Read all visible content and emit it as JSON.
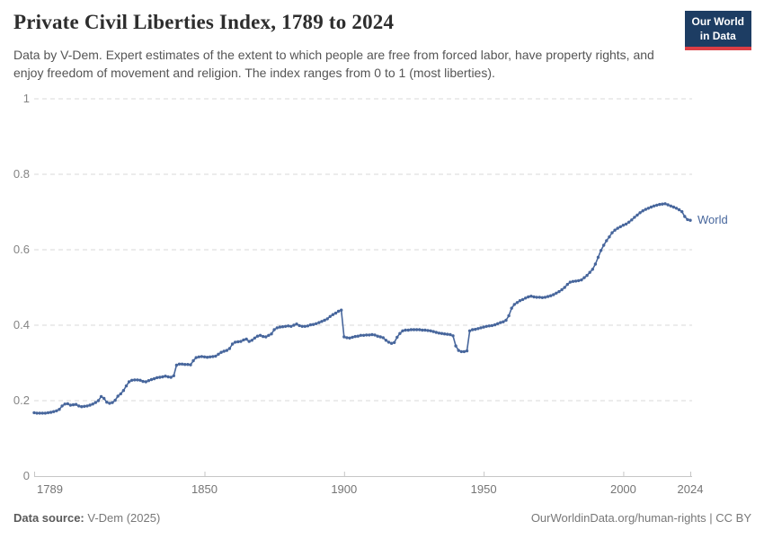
{
  "header": {
    "title": "Private Civil Liberties Index, 1789 to 2024",
    "subtitle": "Data by V-Dem. Expert estimates of the extent to which people are free from forced labor, have property rights, and enjoy freedom of movement and religion. The index ranges from 0 to 1 (most liberties).",
    "logo": {
      "line1": "Our World",
      "line2": "in Data",
      "bg_color": "#1d3d63",
      "stripe_color": "#dc3e45"
    }
  },
  "chart_data": {
    "type": "line",
    "title": "Private Civil Liberties Index, 1789 to 2024",
    "xlabel": "",
    "ylabel": "",
    "xlim": [
      1789,
      2024
    ],
    "ylim": [
      0,
      1
    ],
    "grid": "horizontal-dashed",
    "legend_position": "end-of-line-label",
    "x_ticks": [
      1789,
      1850,
      1900,
      1950,
      2000,
      2024
    ],
    "x_tick_labels": [
      "1789",
      "1850",
      "1900",
      "1950",
      "2000",
      "2024"
    ],
    "y_ticks": [
      0,
      0.2,
      0.4,
      0.6,
      0.8,
      1
    ],
    "y_tick_labels": [
      "0",
      "0.2",
      "0.4",
      "0.6",
      "0.8",
      "1"
    ],
    "series": [
      {
        "name": "World",
        "color": "#47669c",
        "start_year": 1789,
        "end_year": 2024,
        "values": [
          0.168,
          0.167,
          0.167,
          0.167,
          0.167,
          0.168,
          0.169,
          0.171,
          0.173,
          0.177,
          0.186,
          0.191,
          0.192,
          0.188,
          0.189,
          0.19,
          0.186,
          0.184,
          0.185,
          0.186,
          0.188,
          0.191,
          0.195,
          0.2,
          0.211,
          0.206,
          0.196,
          0.193,
          0.195,
          0.201,
          0.212,
          0.218,
          0.227,
          0.239,
          0.25,
          0.254,
          0.255,
          0.255,
          0.254,
          0.251,
          0.25,
          0.253,
          0.256,
          0.258,
          0.261,
          0.262,
          0.263,
          0.265,
          0.263,
          0.262,
          0.266,
          0.294,
          0.297,
          0.297,
          0.296,
          0.296,
          0.295,
          0.306,
          0.314,
          0.316,
          0.317,
          0.316,
          0.315,
          0.316,
          0.317,
          0.318,
          0.323,
          0.328,
          0.331,
          0.333,
          0.338,
          0.35,
          0.355,
          0.356,
          0.357,
          0.361,
          0.363,
          0.357,
          0.36,
          0.366,
          0.371,
          0.373,
          0.37,
          0.369,
          0.373,
          0.377,
          0.388,
          0.393,
          0.395,
          0.396,
          0.397,
          0.398,
          0.397,
          0.4,
          0.403,
          0.399,
          0.397,
          0.397,
          0.398,
          0.401,
          0.402,
          0.404,
          0.407,
          0.41,
          0.413,
          0.417,
          0.423,
          0.428,
          0.432,
          0.437,
          0.44,
          0.369,
          0.367,
          0.366,
          0.368,
          0.37,
          0.371,
          0.373,
          0.373,
          0.374,
          0.374,
          0.375,
          0.374,
          0.371,
          0.369,
          0.367,
          0.36,
          0.355,
          0.352,
          0.354,
          0.368,
          0.378,
          0.385,
          0.387,
          0.387,
          0.388,
          0.388,
          0.388,
          0.388,
          0.387,
          0.387,
          0.386,
          0.385,
          0.383,
          0.381,
          0.379,
          0.378,
          0.377,
          0.376,
          0.375,
          0.372,
          0.345,
          0.333,
          0.33,
          0.33,
          0.332,
          0.385,
          0.388,
          0.389,
          0.391,
          0.393,
          0.395,
          0.397,
          0.398,
          0.399,
          0.401,
          0.404,
          0.407,
          0.409,
          0.413,
          0.425,
          0.445,
          0.455,
          0.46,
          0.465,
          0.468,
          0.472,
          0.475,
          0.477,
          0.475,
          0.474,
          0.474,
          0.473,
          0.474,
          0.476,
          0.478,
          0.481,
          0.485,
          0.489,
          0.494,
          0.5,
          0.508,
          0.514,
          0.516,
          0.517,
          0.518,
          0.52,
          0.526,
          0.532,
          0.54,
          0.548,
          0.562,
          0.58,
          0.598,
          0.612,
          0.624,
          0.634,
          0.645,
          0.652,
          0.657,
          0.661,
          0.665,
          0.668,
          0.673,
          0.679,
          0.686,
          0.692,
          0.698,
          0.703,
          0.707,
          0.71,
          0.713,
          0.716,
          0.718,
          0.72,
          0.721,
          0.722,
          0.719,
          0.716,
          0.713,
          0.71,
          0.706,
          0.701,
          0.688,
          0.68,
          0.678
        ]
      }
    ]
  },
  "footer": {
    "source_label": "Data source:",
    "source_value": " V-Dem (2025)",
    "right_link": "OurWorldinData.org/human-rights",
    "right_license": " | CC BY"
  }
}
